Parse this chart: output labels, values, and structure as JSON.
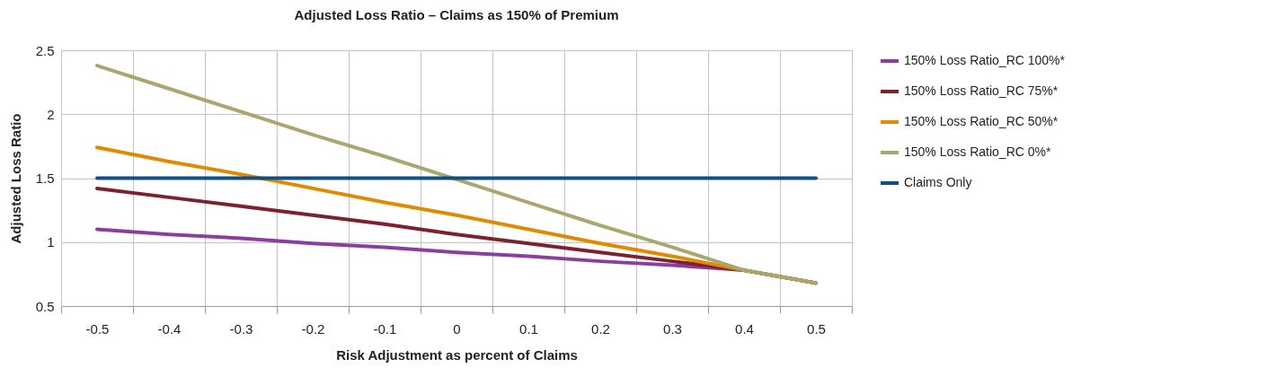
{
  "chart_data": {
    "type": "line",
    "title": "Adjusted Loss Ratio – Claims as 150% of Premium",
    "xlabel": "Risk Adjustment as percent of Claims",
    "ylabel": "Adjusted Loss Ratio",
    "categories": [
      "-0.5",
      "-0.4",
      "-0.3",
      "-0.2",
      "-0.1",
      "0",
      "0.1",
      "0.2",
      "0.3",
      "0.4",
      "0.5"
    ],
    "series": [
      {
        "name": "150% Loss Ratio_RC 100%*",
        "color": "#8a3ea0",
        "values": [
          1.1,
          1.06,
          1.03,
          0.99,
          0.96,
          0.92,
          0.89,
          0.85,
          0.82,
          0.78,
          0.68
        ]
      },
      {
        "name": "150% Loss Ratio_RC 75%*",
        "color": "#7b2130",
        "values": [
          1.42,
          1.35,
          1.28,
          1.21,
          1.14,
          1.06,
          0.99,
          0.92,
          0.85,
          0.78,
          0.68
        ]
      },
      {
        "name": "150% Loss Ratio_RC 50%*",
        "color": "#e08a00",
        "values": [
          1.74,
          1.63,
          1.53,
          1.42,
          1.31,
          1.21,
          1.1,
          0.99,
          0.89,
          0.78,
          0.68
        ]
      },
      {
        "name": "150% Loss Ratio_RC 0%*",
        "color": "#a9a66e",
        "values": [
          2.38,
          2.2,
          2.02,
          1.84,
          1.67,
          1.49,
          1.31,
          1.13,
          0.96,
          0.78,
          0.68
        ]
      },
      {
        "name": "Claims Only",
        "color": "#0e4f85",
        "values": [
          1.5,
          1.5,
          1.5,
          1.5,
          1.5,
          1.5,
          1.5,
          1.5,
          1.5,
          1.5,
          1.5
        ]
      }
    ],
    "ylim": [
      0.5,
      2.5
    ],
    "yticks": [
      0.5,
      1,
      1.5,
      2,
      2.5
    ],
    "grid": true,
    "legend": "right",
    "marker": "none",
    "line_style": "solid"
  }
}
